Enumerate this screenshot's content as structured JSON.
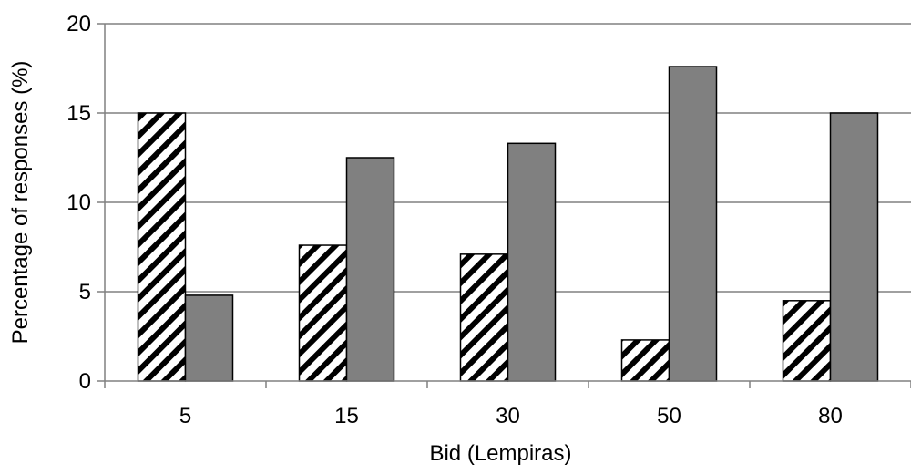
{
  "chart_data": {
    "type": "bar",
    "categories": [
      "5",
      "15",
      "30",
      "50",
      "80"
    ],
    "series": [
      {
        "values": [
          15.0,
          7.6,
          7.1,
          2.3,
          4.5
        ],
        "fill": "hatched"
      },
      {
        "values": [
          4.8,
          12.5,
          13.3,
          17.6,
          15.0
        ],
        "color": "#808080"
      }
    ],
    "xlabel": "Bid (Lempiras)",
    "ylabel": "Percentage of responses (%)",
    "ylim": [
      0,
      20
    ],
    "yticks": [
      "0",
      "5",
      "10",
      "15",
      "20"
    ],
    "grid": true,
    "legend": false
  }
}
